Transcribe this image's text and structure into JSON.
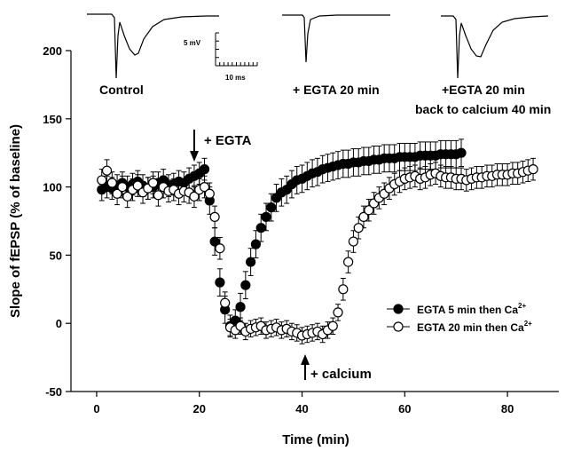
{
  "chart_data": {
    "type": "scatter",
    "xlabel": "Time (min)",
    "ylabel": "Slope of fEPSP (% of baseline)",
    "xlim": [
      -5,
      90
    ],
    "ylim": [
      -50,
      200
    ],
    "xticks": [
      0,
      20,
      40,
      60,
      80
    ],
    "yticks": [
      -50,
      0,
      50,
      100,
      150,
      200
    ],
    "grid": false,
    "legend_position": "lower-right",
    "error_bars": true,
    "series": [
      {
        "name": "EGTA 5 min then Ca2+",
        "label_main": "EGTA 5 min then Ca",
        "label_sup": "2+",
        "marker": "filled-circle",
        "x": [
          1,
          2,
          3,
          4,
          5,
          6,
          7,
          8,
          9,
          10,
          11,
          12,
          13,
          14,
          15,
          16,
          17,
          18,
          19,
          20,
          21,
          22,
          23,
          24,
          25,
          26,
          27,
          28,
          29,
          30,
          31,
          32,
          33,
          34,
          35,
          36,
          37,
          38,
          39,
          40,
          41,
          42,
          43,
          44,
          45,
          46,
          47,
          48,
          49,
          50,
          51,
          52,
          53,
          54,
          55,
          56,
          57,
          58,
          59,
          60,
          61,
          62,
          63,
          64,
          65,
          66,
          67,
          68,
          69,
          70,
          71
        ],
        "y": [
          98,
          100,
          99,
          101,
          103,
          100,
          102,
          104,
          101,
          99,
          100,
          103,
          105,
          101,
          102,
          104,
          103,
          106,
          108,
          110,
          113,
          90,
          60,
          30,
          10,
          -2,
          2,
          12,
          28,
          45,
          58,
          70,
          78,
          85,
          92,
          96,
          98,
          102,
          105,
          106,
          108,
          110,
          111,
          113,
          114,
          115,
          116,
          117,
          117,
          118,
          118,
          119,
          119,
          120,
          120,
          121,
          121,
          121,
          122,
          122,
          122,
          122,
          123,
          123,
          123,
          123,
          124,
          124,
          124,
          124,
          125
        ],
        "err": [
          8,
          8,
          8,
          8,
          8,
          8,
          8,
          8,
          8,
          8,
          8,
          8,
          8,
          8,
          8,
          8,
          8,
          8,
          8,
          8,
          8,
          10,
          10,
          10,
          10,
          8,
          8,
          10,
          10,
          10,
          10,
          10,
          10,
          10,
          10,
          10,
          10,
          10,
          10,
          10,
          10,
          10,
          10,
          10,
          10,
          10,
          10,
          10,
          10,
          10,
          10,
          10,
          10,
          10,
          10,
          10,
          10,
          10,
          10,
          10,
          10,
          10,
          10,
          10,
          10,
          10,
          10,
          10,
          10,
          10,
          10
        ]
      },
      {
        "name": "EGTA 20 min then Ca2+",
        "label_main": "EGTA 20 min then Ca",
        "label_sup": "2+",
        "marker": "open-circle",
        "x": [
          1,
          2,
          3,
          4,
          5,
          6,
          7,
          8,
          9,
          10,
          11,
          12,
          13,
          14,
          15,
          16,
          17,
          18,
          19,
          20,
          21,
          22,
          23,
          24,
          25,
          26,
          27,
          28,
          29,
          30,
          31,
          32,
          33,
          34,
          35,
          36,
          37,
          38,
          39,
          40,
          41,
          42,
          43,
          44,
          45,
          46,
          47,
          48,
          49,
          50,
          51,
          52,
          53,
          54,
          55,
          56,
          57,
          58,
          59,
          60,
          61,
          62,
          63,
          64,
          65,
          66,
          67,
          68,
          69,
          70,
          71,
          72,
          73,
          74,
          75,
          76,
          77,
          78,
          79,
          80,
          81,
          82,
          83,
          84,
          85
        ],
        "y": [
          105,
          112,
          103,
          95,
          100,
          93,
          98,
          101,
          96,
          99,
          103,
          94,
          100,
          97,
          98,
          95,
          97,
          96,
          93,
          98,
          100,
          95,
          78,
          55,
          15,
          -3,
          -5,
          -2,
          -6,
          -4,
          -3,
          -2,
          -5,
          -4,
          -3,
          -5,
          -4,
          -6,
          -7,
          -9,
          -8,
          -7,
          -6,
          -8,
          -5,
          -2,
          8,
          25,
          45,
          60,
          70,
          78,
          83,
          88,
          92,
          95,
          99,
          102,
          104,
          106,
          107,
          108,
          106,
          107,
          109,
          110,
          108,
          107,
          107,
          106,
          106,
          105,
          106,
          107,
          107,
          108,
          108,
          109,
          109,
          109,
          110,
          110,
          111,
          112,
          113
        ],
        "err": [
          8,
          8,
          8,
          8,
          8,
          8,
          8,
          8,
          8,
          8,
          8,
          8,
          8,
          8,
          8,
          8,
          8,
          8,
          8,
          8,
          8,
          8,
          8,
          8,
          8,
          6,
          6,
          6,
          6,
          6,
          6,
          6,
          6,
          6,
          6,
          6,
          6,
          6,
          6,
          6,
          6,
          6,
          6,
          6,
          6,
          6,
          6,
          8,
          8,
          8,
          8,
          8,
          8,
          8,
          8,
          8,
          8,
          8,
          8,
          8,
          8,
          8,
          8,
          8,
          8,
          8,
          8,
          8,
          8,
          8,
          8,
          8,
          8,
          8,
          8,
          8,
          8,
          8,
          8,
          8,
          8,
          8,
          8,
          8,
          8
        ]
      }
    ],
    "annotations": [
      {
        "text": "+ EGTA",
        "x": 19,
        "direction": "down"
      },
      {
        "text": "+ calcium",
        "x": 40,
        "direction": "up"
      }
    ],
    "inset_traces": [
      {
        "label": "Control",
        "label_line2": ""
      },
      {
        "label": "+ EGTA 20 min",
        "label_line2": ""
      },
      {
        "label": "+EGTA 20 min",
        "label_line2": "back to calcium 40 min"
      }
    ],
    "scale_bar": {
      "vertical": "5 mV",
      "horizontal": "10 ms"
    }
  }
}
